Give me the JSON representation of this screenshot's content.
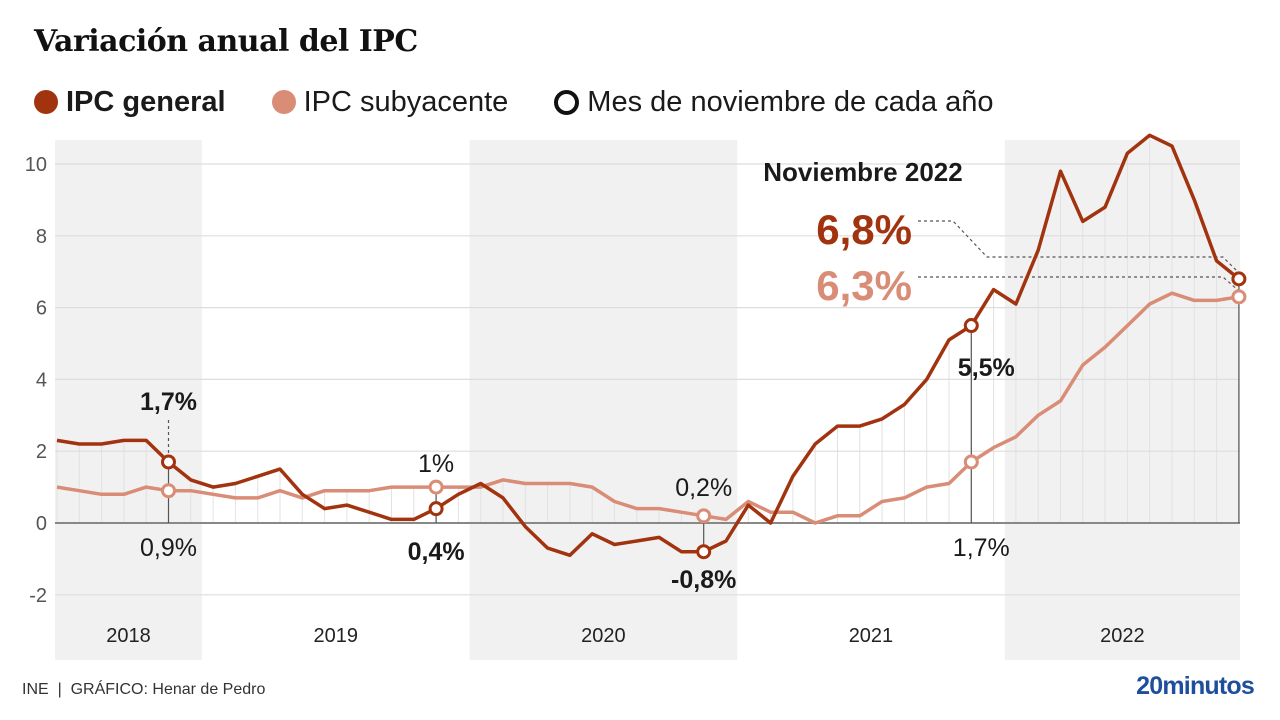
{
  "header": {
    "title": "Variación anual del IPC"
  },
  "legend": [
    {
      "label": "IPC general",
      "color": "#a2330f",
      "type": "dot",
      "bold": true
    },
    {
      "label": "IPC subyacente",
      "color": "#d98c76",
      "type": "dot",
      "bold": false
    },
    {
      "label": "Mes de noviembre de cada año",
      "color": "#111111",
      "type": "ring",
      "bold": false
    }
  ],
  "colors": {
    "general": "#a2330f",
    "core": "#d98c76",
    "grid": "#dddddd",
    "band": "#efefef",
    "axis": "#888888"
  },
  "chart_data": {
    "type": "line",
    "title": "Variación anual del IPC",
    "xlabel": "",
    "ylabel": "",
    "ylim": [
      -2,
      10.5
    ],
    "yticks": [
      -2,
      0,
      2,
      4,
      6,
      8,
      10
    ],
    "grid": true,
    "legend_position": "top-left",
    "x_start": "2018-06",
    "x_end": "2022-11",
    "years": [
      {
        "label": "2018",
        "shaded": true
      },
      {
        "label": "2019",
        "shaded": false
      },
      {
        "label": "2020",
        "shaded": true
      },
      {
        "label": "2021",
        "shaded": false
      },
      {
        "label": "2022",
        "shaded": true
      }
    ],
    "series": [
      {
        "name": "IPC general",
        "values": [
          2.3,
          2.2,
          2.2,
          2.3,
          2.3,
          1.7,
          1.2,
          1.0,
          1.1,
          1.3,
          1.5,
          0.8,
          0.4,
          0.5,
          0.3,
          0.1,
          0.1,
          0.4,
          0.8,
          1.1,
          0.7,
          -0.1,
          -0.7,
          -0.9,
          -0.3,
          -0.6,
          -0.5,
          -0.4,
          -0.8,
          -0.8,
          -0.5,
          0.5,
          0.0,
          1.3,
          2.2,
          2.7,
          2.7,
          2.9,
          3.3,
          4.0,
          5.1,
          5.5,
          6.5,
          6.1,
          7.6,
          9.8,
          8.4,
          8.8,
          10.3,
          10.8,
          10.5,
          9.0,
          7.3,
          6.8
        ]
      },
      {
        "name": "IPC subyacente",
        "values": [
          1.0,
          0.9,
          0.8,
          0.8,
          1.0,
          0.9,
          0.9,
          0.8,
          0.7,
          0.7,
          0.9,
          0.7,
          0.9,
          0.9,
          0.9,
          1.0,
          1.0,
          1.0,
          1.0,
          1.0,
          1.2,
          1.1,
          1.1,
          1.1,
          1.0,
          0.6,
          0.4,
          0.4,
          0.3,
          0.2,
          0.1,
          0.6,
          0.3,
          0.3,
          0.0,
          0.2,
          0.2,
          0.6,
          0.7,
          1.0,
          1.1,
          1.7,
          2.1,
          2.4,
          3.0,
          3.4,
          4.4,
          4.9,
          5.5,
          6.1,
          6.4,
          6.2,
          6.2,
          6.3
        ]
      }
    ],
    "november_markers": [
      {
        "year": "2018",
        "general": 1.7,
        "core": 0.9,
        "general_label": "1,7%",
        "core_label": "0,9%"
      },
      {
        "year": "2019",
        "general": 0.4,
        "core": 1.0,
        "general_label": "0,4%",
        "core_label": "1%"
      },
      {
        "year": "2020",
        "general": -0.8,
        "core": 0.2,
        "general_label": "-0,8%",
        "core_label": "0,2%"
      },
      {
        "year": "2021",
        "general": 5.5,
        "core": 1.7,
        "general_label": "5,5%",
        "core_label": "1,7%"
      },
      {
        "year": "2022",
        "general": 6.8,
        "core": 6.3
      }
    ],
    "annotation": {
      "heading": "Noviembre 2022",
      "general_value": "6,8%",
      "core_value": "6,3%"
    }
  },
  "footer": {
    "source": "INE  |  GRÁFICO: Henar de Pedro",
    "logo": "20minutos"
  }
}
